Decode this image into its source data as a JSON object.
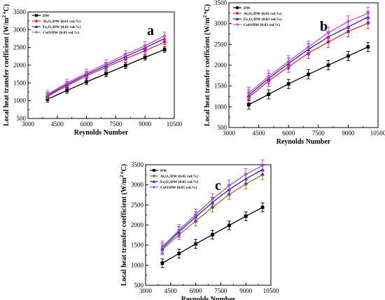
{
  "chart_data": [
    {
      "type": "line",
      "panel_label": "a",
      "xlabel": "Reynolds Number",
      "ylabel": "Local heat transfer coefficient (W/m",
      "ylabel_sup": "2 o",
      "ylabel_tail": "C)",
      "xlim": [
        3000,
        10500
      ],
      "ylim": [
        500,
        3500
      ],
      "xticks": [
        "3000",
        "4500",
        "6000",
        "7500",
        "9000",
        "10500"
      ],
      "yticks": [
        "500",
        "1000",
        "1500",
        "2000",
        "2500",
        "3000",
        "3500"
      ],
      "x": [
        4000,
        5000,
        6000,
        7000,
        8000,
        9000,
        10000
      ],
      "legend_position": "top-left",
      "series": [
        {
          "name": "DW",
          "color": "#000000",
          "marker": "square",
          "values": [
            1040,
            1290,
            1530,
            1760,
            1990,
            2220,
            2440
          ],
          "err": 80
        },
        {
          "name": "Al₂O₃/DW (0.01 vol.%)",
          "color": "#e8262b",
          "marker": "circle",
          "values": [
            1120,
            1420,
            1700,
            1940,
            2180,
            2410,
            2650
          ],
          "err": 70
        },
        {
          "name": "Fe₂O₃/DW (0.01 vol.%)",
          "color": "#2424c8",
          "marker": "triangle",
          "values": [
            1150,
            1460,
            1740,
            1990,
            2240,
            2490,
            2750
          ],
          "err": 80
        },
        {
          "name": "CuO/DW    (0.01 vol.%)",
          "color": "#e03ee0",
          "marker": "diamond",
          "values": [
            1180,
            1500,
            1780,
            2040,
            2300,
            2550,
            2820
          ],
          "err": 110
        }
      ]
    },
    {
      "type": "line",
      "panel_label": "b",
      "xlabel": "Reynolds Number",
      "ylabel": "Local heat transfer coefficient (W/m",
      "ylabel_sup": "2 o",
      "ylabel_tail": "C)",
      "xlim": [
        3000,
        10500
      ],
      "ylim": [
        500,
        3500
      ],
      "xticks": [
        "3000",
        "4500",
        "6000",
        "7500",
        "9000",
        "10500"
      ],
      "yticks": [
        "500",
        "1000",
        "1500",
        "2000",
        "2500",
        "3000",
        "3500"
      ],
      "x": [
        4000,
        5000,
        6000,
        7000,
        8000,
        9000,
        10000
      ],
      "legend_position": "top-left",
      "series": [
        {
          "name": "DW",
          "color": "#000000",
          "marker": "square",
          "values": [
            1050,
            1300,
            1550,
            1780,
            2000,
            2220,
            2440
          ],
          "err": 110
        },
        {
          "name": "Al₂O₃/DW (0.03 vol.%)",
          "color": "#e8262b",
          "marker": "circle",
          "values": [
            1230,
            1620,
            1960,
            2290,
            2560,
            2810,
            3010
          ],
          "err": 130
        },
        {
          "name": "Fe₂O₃/DW (0.03 vol.%)",
          "color": "#2424c8",
          "marker": "triangle",
          "values": [
            1280,
            1680,
            2040,
            2380,
            2680,
            2920,
            3160
          ],
          "err": 130
        },
        {
          "name": "CuO/DW     (0.03 vol.%)",
          "color": "#e03ee0",
          "marker": "diamond",
          "values": [
            1330,
            1730,
            2090,
            2440,
            2780,
            3050,
            3250
          ],
          "err": 140
        }
      ]
    },
    {
      "type": "line",
      "panel_label": "c",
      "xlabel": "Reynolds Number",
      "ylabel": "Local heat transfer coefficient (W/m",
      "ylabel_sup": "2 o",
      "ylabel_tail": "C)",
      "xlim": [
        3000,
        10500
      ],
      "ylim": [
        500,
        3500
      ],
      "xticks": [
        "3000",
        "4500",
        "6000",
        "7500",
        "9000",
        "10500"
      ],
      "yticks": [
        "500",
        "1000",
        "1500",
        "2000",
        "2500",
        "3000",
        "3500"
      ],
      "x": [
        4000,
        5000,
        6000,
        7000,
        8000,
        9000,
        10000
      ],
      "legend_position": "top-left",
      "series": [
        {
          "name": "DW",
          "color": "#000000",
          "marker": "square",
          "values": [
            1050,
            1290,
            1530,
            1760,
            1990,
            2220,
            2440
          ],
          "err": 110
        },
        {
          "name": "Al₂O₃/DW (0.05 vol.%)",
          "color": "#b5651d",
          "marker": "circle",
          "values": [
            1380,
            1760,
            2100,
            2440,
            2760,
            3020,
            3250
          ],
          "err": 120
        },
        {
          "name": "Fe₂O₃/DW (0.05 vol.%)",
          "color": "#2424c8",
          "marker": "triangle",
          "values": [
            1420,
            1830,
            2200,
            2560,
            2880,
            3150,
            3380
          ],
          "err": 130
        },
        {
          "name": "CuO/DW     (0.05 vol.%)",
          "color": "#9b4fe0",
          "marker": "diamond",
          "values": [
            1460,
            1870,
            2260,
            2640,
            2980,
            3260,
            3480
          ],
          "err": 140
        }
      ]
    }
  ]
}
